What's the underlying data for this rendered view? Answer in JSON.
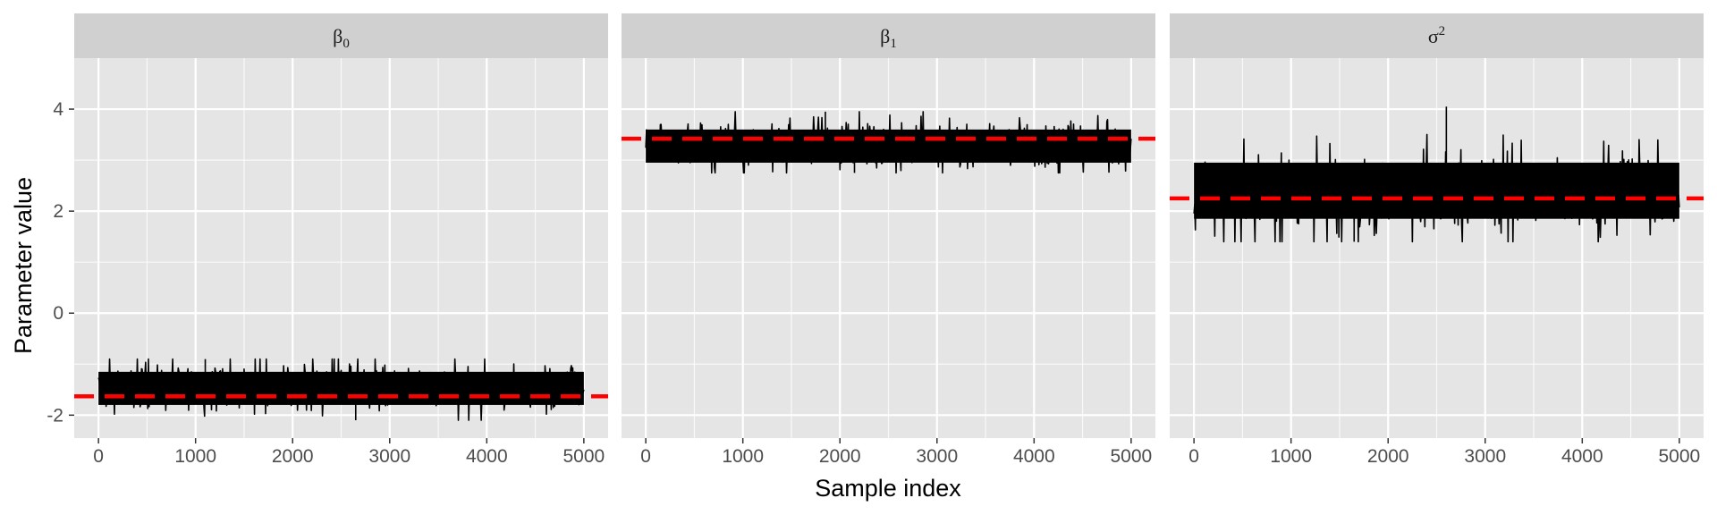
{
  "chart_data": {
    "type": "line",
    "subtype": "faceted-trace-plot",
    "title": "",
    "xlabel": "Sample index",
    "ylabel": "Parameter value",
    "xlim": [
      -250,
      5250
    ],
    "ylim": [
      -2.45,
      5.0
    ],
    "x_ticks": [
      0,
      1000,
      2000,
      3000,
      4000,
      5000
    ],
    "y_ticks": [
      -2,
      0,
      2,
      4
    ],
    "x_tick_labels": [
      "0",
      "1000",
      "2000",
      "3000",
      "4000",
      "5000"
    ],
    "y_tick_labels": [
      "-2",
      "0",
      "2",
      "4"
    ],
    "n_samples": 5000,
    "grid": true,
    "legend": "none",
    "colors": {
      "panel_background": "#e5e5e5",
      "strip_background": "#d0d0d0",
      "grid": "#ffffff",
      "trace": "#000000",
      "reference_line": "#ff0000"
    },
    "facets": [
      {
        "label": "β",
        "label_subscript": "0",
        "label_superscript": "",
        "trace": {
          "mean": -1.45,
          "band_low": -1.8,
          "band_high": -1.15,
          "min": -2.1,
          "max": -0.9
        },
        "reference_value": -1.63
      },
      {
        "label": "β",
        "label_subscript": "1",
        "label_superscript": "",
        "trace": {
          "mean": 3.3,
          "band_low": 2.95,
          "band_high": 3.6,
          "min": 2.75,
          "max": 3.95
        },
        "reference_value": 3.42
      },
      {
        "label": "σ",
        "label_subscript": "",
        "label_superscript": "2",
        "trace": {
          "mean": 2.35,
          "band_low": 1.85,
          "band_high": 2.95,
          "min": 1.4,
          "max": 4.05
        },
        "reference_value": 2.25
      }
    ]
  }
}
